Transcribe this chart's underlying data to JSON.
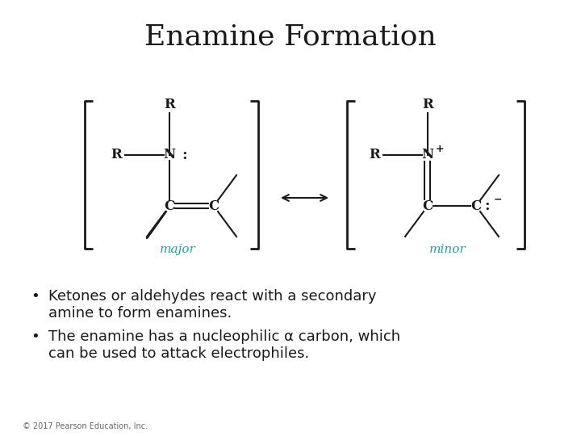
{
  "title": "Enamine Formation",
  "title_fontsize": 26,
  "title_fontfamily": "DejaVu Serif",
  "bg_color": "#ffffff",
  "text_color": "#1a1a1a",
  "teal_color": "#2a9d9d",
  "bullet1_line1": "Ketones or aldehydes react with a secondary",
  "bullet1_line2": "amine to form enamines.",
  "bullet2_line1": "The enamine has a nucleophilic α carbon, which",
  "bullet2_line2": "can be used to attack electrophiles.",
  "copyright": "© 2017 Pearson Education, Inc.",
  "major_label": "major",
  "minor_label": "minor",
  "lw": 1.5,
  "bracket_lw": 2.0,
  "font_size_struct": 12,
  "font_size_bullet": 13,
  "font_size_copy": 7
}
